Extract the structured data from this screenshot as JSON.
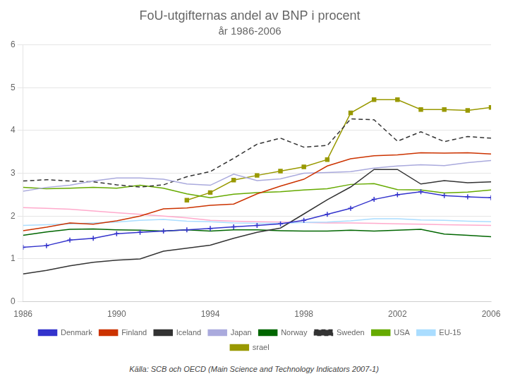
{
  "chart_data": {
    "type": "line",
    "title": "FoU-utgifternas andel av BNP i procent",
    "subtitle": "år 1986-2006",
    "annotations": [
      "Källa: SCB och OECD (Main Science and Technology Indicators 2007-1)"
    ],
    "x": [
      1986,
      1987,
      1988,
      1989,
      1990,
      1991,
      1992,
      1993,
      1994,
      1995,
      1996,
      1997,
      1998,
      1999,
      2000,
      2001,
      2002,
      2003,
      2004,
      2005,
      2006
    ],
    "series": [
      {
        "name": "Denmark",
        "color": "#3333cc",
        "marker": "plus",
        "line_style": "solid",
        "values": [
          1.27,
          1.31,
          1.44,
          1.48,
          1.59,
          1.62,
          1.65,
          1.68,
          1.71,
          1.75,
          1.78,
          1.82,
          1.9,
          2.04,
          2.18,
          2.39,
          2.5,
          2.57,
          2.48,
          2.45,
          2.43
        ]
      },
      {
        "name": "Finland",
        "color": "#cc3300",
        "line_style": "solid",
        "values": [
          1.66,
          1.74,
          1.84,
          1.81,
          1.89,
          2.0,
          2.17,
          2.19,
          2.25,
          2.28,
          2.52,
          2.7,
          2.86,
          3.17,
          3.34,
          3.41,
          3.43,
          3.48,
          3.47,
          3.48,
          3.45
        ]
      },
      {
        "name": "Iceland",
        "color": "#333333",
        "line_style": "solid",
        "values": [
          0.65,
          0.73,
          0.84,
          0.92,
          0.97,
          1.0,
          1.18,
          1.25,
          1.32,
          1.48,
          1.62,
          1.72,
          2.05,
          2.38,
          2.68,
          3.09,
          3.09,
          2.75,
          2.83,
          2.78,
          2.8
        ]
      },
      {
        "name": "Japan",
        "color": "#aaaadd",
        "line_style": "solid",
        "values": [
          2.58,
          2.67,
          2.72,
          2.82,
          2.89,
          2.89,
          2.86,
          2.75,
          2.72,
          2.98,
          2.83,
          2.87,
          3.0,
          3.02,
          3.04,
          3.12,
          3.17,
          3.2,
          3.18,
          3.25,
          3.3
        ]
      },
      {
        "name": "Norway",
        "color": "#006600",
        "line_style": "solid",
        "values": [
          1.55,
          1.63,
          1.69,
          1.7,
          1.68,
          1.67,
          1.65,
          1.68,
          1.65,
          1.68,
          1.68,
          1.66,
          1.65,
          1.65,
          1.67,
          1.65,
          1.67,
          1.69,
          1.58,
          1.55,
          1.52
        ]
      },
      {
        "name": "Sweden",
        "color": "#333333",
        "line_style": "dashed",
        "values": [
          2.82,
          2.85,
          2.82,
          2.8,
          2.73,
          2.68,
          2.73,
          2.92,
          3.04,
          3.35,
          3.68,
          3.82,
          3.61,
          3.65,
          4.27,
          4.25,
          3.75,
          3.97,
          3.74,
          3.86,
          3.82
        ]
      },
      {
        "name": "USA",
        "color": "#66aa00",
        "line_style": "solid",
        "values": [
          2.67,
          2.64,
          2.65,
          2.67,
          2.65,
          2.72,
          2.65,
          2.52,
          2.43,
          2.51,
          2.55,
          2.57,
          2.61,
          2.64,
          2.74,
          2.76,
          2.62,
          2.61,
          2.54,
          2.56,
          2.61
        ]
      },
      {
        "name": "EU-15",
        "color": "#aaddff",
        "line_style": "solid",
        "values": [
          1.78,
          1.8,
          1.82,
          1.84,
          1.86,
          1.9,
          1.92,
          1.88,
          1.87,
          1.84,
          1.83,
          1.83,
          1.85,
          1.86,
          1.89,
          1.94,
          1.94,
          1.91,
          1.9,
          1.88,
          1.87
        ]
      },
      {
        "name": "srael",
        "color": "#999900",
        "marker": "square",
        "line_style": "solid",
        "values": [
          null,
          null,
          null,
          null,
          null,
          null,
          null,
          2.37,
          2.55,
          2.84,
          2.95,
          3.05,
          3.15,
          3.32,
          4.41,
          4.72,
          4.72,
          4.49,
          4.49,
          4.47,
          4.54
        ]
      },
      {
        "color": "#ffaacc",
        "line_style": "solid",
        "values": [
          2.2,
          2.18,
          2.16,
          2.12,
          2.08,
          2.04,
          2.0,
          1.96,
          1.9,
          1.88,
          1.87,
          1.86,
          1.85,
          1.84,
          1.84,
          1.83,
          1.82,
          1.81,
          1.8,
          1.79,
          1.78
        ]
      }
    ],
    "xlim": [
      1986,
      2006
    ],
    "xticks": [
      1986,
      1990,
      1994,
      1998,
      2002,
      2006
    ],
    "ylim": [
      0,
      6
    ],
    "yticks": [
      0,
      1,
      2,
      3,
      4,
      5,
      6
    ],
    "grid": "y",
    "legend": "bottom"
  }
}
